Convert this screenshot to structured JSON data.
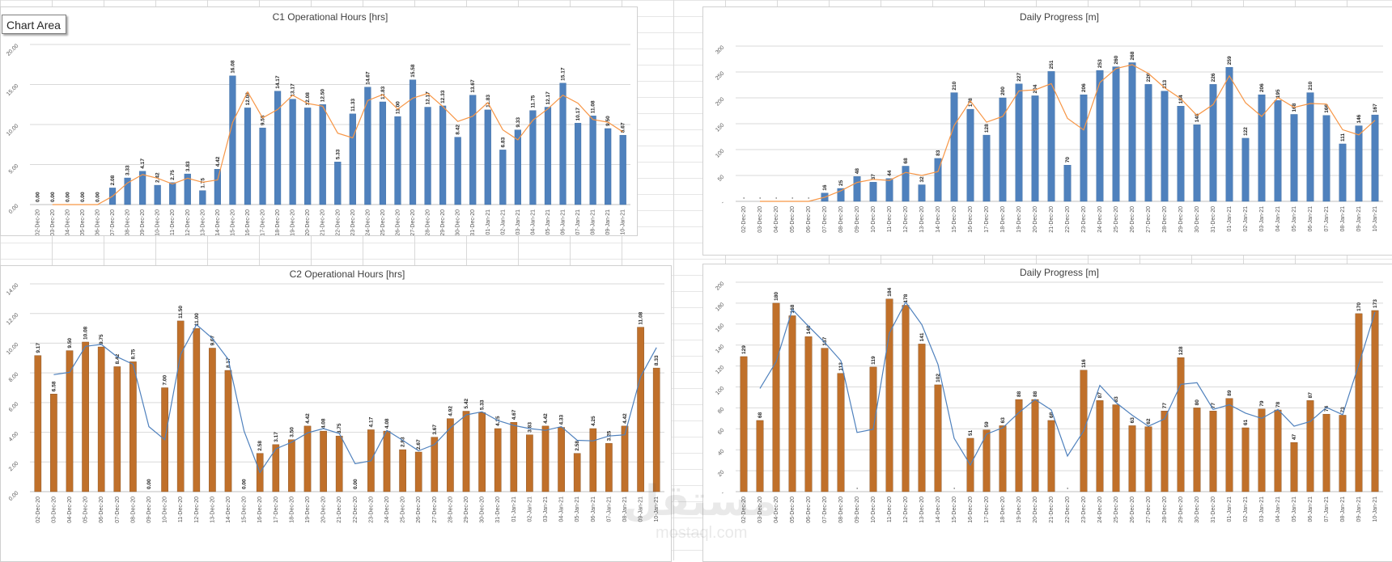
{
  "tooltip": "Chart Area",
  "watermark": {
    "main": "مستقل",
    "sub": "mostaql.com"
  },
  "chart_data": [
    {
      "type": "bar",
      "title": "C1 Operational Hours [hrs]",
      "categories": [
        "02-Dec-20",
        "03-Dec-20",
        "04-Dec-20",
        "05-Dec-20",
        "06-Dec-20",
        "07-Dec-20",
        "08-Dec-20",
        "09-Dec-20",
        "10-Dec-20",
        "11-Dec-20",
        "12-Dec-20",
        "13-Dec-20",
        "14-Dec-20",
        "15-Dec-20",
        "16-Dec-20",
        "17-Dec-20",
        "18-Dec-20",
        "19-Dec-20",
        "20-Dec-20",
        "21-Dec-20",
        "22-Dec-20",
        "23-Dec-20",
        "24-Dec-20",
        "25-Dec-20",
        "26-Dec-20",
        "27-Dec-20",
        "28-Dec-20",
        "29-Dec-20",
        "30-Dec-20",
        "31-Dec-20",
        "01-Jan-21",
        "02-Jan-21",
        "03-Jan-21",
        "04-Jan-21",
        "05-Jan-21",
        "06-Jan-21",
        "07-Jan-21",
        "08-Jan-21",
        "09-Jan-21",
        "10-Jan-21"
      ],
      "values": [
        0,
        0,
        0,
        0,
        0,
        2.08,
        3.33,
        4.17,
        2.42,
        2.75,
        3.83,
        1.75,
        4.42,
        16.08,
        12.08,
        9.58,
        14.17,
        13.17,
        12.08,
        12.5,
        5.33,
        11.33,
        14.67,
        12.83,
        11.0,
        15.58,
        12.17,
        12.33,
        8.42,
        13.67,
        11.83,
        6.83,
        9.33,
        11.75,
        12.17,
        15.17,
        10.17,
        11.08,
        9.5,
        8.67
      ],
      "labels": [
        "0.00",
        "0.00",
        "0.00",
        "0.00",
        "0.00",
        "2.08",
        "3.33",
        "4.17",
        "2.42",
        "2.75",
        "3.83",
        "1.75",
        "4.42",
        "16.08",
        "12.08",
        "9.58",
        "14.17",
        "13.17",
        "12.08",
        "12.50",
        "5.33",
        "11.33",
        "14.67",
        "12.83",
        "11.00",
        "15.58",
        "12.17",
        "12.33",
        "8.42",
        "13.67",
        "11.83",
        "6.83",
        "9.33",
        "11.75",
        "12.17",
        "15.17",
        "10.17",
        "11.08",
        "9.50",
        "8.67"
      ],
      "trend": [
        null,
        0,
        0,
        0,
        0,
        1.04,
        2.71,
        3.75,
        3.29,
        2.58,
        3.29,
        2.79,
        3.08,
        10.25,
        14.08,
        10.83,
        11.88,
        13.67,
        12.63,
        12.29,
        8.92,
        8.33,
        13.0,
        13.75,
        11.92,
        13.29,
        13.88,
        12.25,
        10.38,
        11.04,
        12.75,
        9.33,
        8.08,
        10.54,
        11.96,
        13.67,
        12.67,
        10.63,
        10.29,
        9.08
      ],
      "ylim": [
        0,
        20
      ],
      "yticks": [
        "0.00",
        "5.00",
        "10.00",
        "15.00",
        "20.00"
      ],
      "bar_color": "#4f81bd",
      "line_color": "#f79646"
    },
    {
      "type": "bar",
      "title": "Daily Progress [m]",
      "categories": [
        "02-Dec-20",
        "03-Dec-20",
        "04-Dec-20",
        "05-Dec-20",
        "06-Dec-20",
        "07-Dec-20",
        "08-Dec-20",
        "09-Dec-20",
        "10-Dec-20",
        "11-Dec-20",
        "12-Dec-20",
        "13-Dec-20",
        "14-Dec-20",
        "15-Dec-20",
        "16-Dec-20",
        "17-Dec-20",
        "18-Dec-20",
        "19-Dec-20",
        "20-Dec-20",
        "21-Dec-20",
        "22-Dec-20",
        "23-Dec-20",
        "24-Dec-20",
        "25-Dec-20",
        "26-Dec-20",
        "27-Dec-20",
        "28-Dec-20",
        "29-Dec-20",
        "30-Dec-20",
        "31-Dec-20",
        "01-Jan-21",
        "02-Jan-21",
        "03-Jan-21",
        "04-Jan-21",
        "05-Jan-21",
        "06-Jan-21",
        "07-Jan-21",
        "08-Jan-21",
        "09-Jan-21",
        "10-Jan-21"
      ],
      "values": [
        0,
        0,
        0,
        0,
        0,
        16,
        25,
        48,
        37,
        44,
        68,
        32,
        83,
        210,
        178,
        128,
        200,
        227,
        204,
        251,
        70,
        206,
        253,
        260,
        268,
        226,
        213,
        184,
        148,
        226,
        259,
        122,
        206,
        195,
        168,
        210,
        166,
        111,
        146,
        167
      ],
      "labels": [
        "-",
        "-",
        "-",
        "-",
        "-",
        "16",
        "25",
        "48",
        "37",
        "44",
        "68",
        "32",
        "83",
        "210",
        "178",
        "128",
        "200",
        "227",
        "204",
        "251",
        "70",
        "206",
        "253",
        "260",
        "268",
        "226",
        "213",
        "184",
        "148",
        "226",
        "259",
        "122",
        "206",
        "195",
        "168",
        "210",
        "166",
        "111",
        "146",
        "167"
      ],
      "trend": [
        null,
        0,
        0,
        0,
        0,
        8,
        20.5,
        36.5,
        42.5,
        40.5,
        56,
        50,
        57.5,
        146.5,
        194,
        153,
        164,
        213.5,
        215.5,
        227.5,
        160.5,
        138,
        229.5,
        256.5,
        264,
        247,
        219.5,
        198.5,
        166,
        187,
        242.5,
        190.5,
        164,
        200.5,
        181.5,
        189,
        188,
        138.5,
        128.5,
        156.5
      ],
      "ylim": [
        0,
        300
      ],
      "yticks": [
        "-",
        "50",
        "100",
        "150",
        "200",
        "250",
        "300"
      ],
      "bar_color": "#4f81bd",
      "line_color": "#f79646"
    },
    {
      "type": "bar",
      "title": "C2 Operational Hours [hrs]",
      "categories": [
        "02-Dec-20",
        "03-Dec-20",
        "04-Dec-20",
        "05-Dec-20",
        "06-Dec-20",
        "07-Dec-20",
        "08-Dec-20",
        "09-Dec-20",
        "10-Dec-20",
        "11-Dec-20",
        "12-Dec-20",
        "13-Dec-20",
        "14-Dec-20",
        "15-Dec-20",
        "16-Dec-20",
        "17-Dec-20",
        "18-Dec-20",
        "19-Dec-20",
        "20-Dec-20",
        "21-Dec-20",
        "22-Dec-20",
        "23-Dec-20",
        "24-Dec-20",
        "25-Dec-20",
        "26-Dec-20",
        "27-Dec-20",
        "28-Dec-20",
        "29-Dec-20",
        "30-Dec-20",
        "31-Dec-20",
        "01-Jan-21",
        "02-Jan-21",
        "03-Jan-21",
        "04-Jan-21",
        "05-Jan-21",
        "06-Jan-21",
        "07-Jan-21",
        "08-Jan-21",
        "09-Jan-21",
        "10-Jan-21"
      ],
      "values": [
        9.17,
        6.58,
        9.5,
        10.08,
        9.75,
        8.42,
        8.75,
        0,
        7.0,
        11.5,
        11.0,
        9.67,
        8.17,
        0,
        2.58,
        3.17,
        3.5,
        4.42,
        4.08,
        3.75,
        0,
        4.17,
        4.08,
        2.83,
        2.67,
        3.67,
        4.92,
        5.42,
        5.33,
        4.25,
        4.67,
        3.83,
        4.42,
        4.33,
        2.58,
        4.25,
        3.25,
        4.42,
        11.08,
        8.33
      ],
      "labels": [
        "9.17",
        "6.58",
        "9.50",
        "10.08",
        "9.75",
        "8.42",
        "8.75",
        "0.00",
        "7.00",
        "11.50",
        "11.00",
        "9.67",
        "8.17",
        "0.00",
        "2.58",
        "3.17",
        "3.50",
        "4.42",
        "4.08",
        "3.75",
        "0.00",
        "4.17",
        "4.08",
        "2.83",
        "2.67",
        "3.67",
        "4.92",
        "5.42",
        "5.33",
        "4.25",
        "4.67",
        "3.83",
        "4.42",
        "4.33",
        "2.58",
        "4.25",
        "3.25",
        "4.42",
        "11.08",
        "8.33"
      ],
      "trend": [
        null,
        7.88,
        8.04,
        9.79,
        9.92,
        9.08,
        8.58,
        4.38,
        3.5,
        9.25,
        11.25,
        10.33,
        8.92,
        4.08,
        1.29,
        2.88,
        3.33,
        3.96,
        4.25,
        3.92,
        1.88,
        2.08,
        4.13,
        3.46,
        2.75,
        3.17,
        4.29,
        5.17,
        5.38,
        4.79,
        4.46,
        4.25,
        4.13,
        4.38,
        3.46,
        3.42,
        3.75,
        3.83,
        7.75,
        9.71
      ],
      "ylim": [
        0,
        14
      ],
      "yticks": [
        "0.00",
        "2.00",
        "4.00",
        "6.00",
        "8.00",
        "10.00",
        "12.00",
        "14.00"
      ],
      "bar_color": "#c0702a",
      "line_color": "#4f81bd"
    },
    {
      "type": "bar",
      "title": "Daily Progress [m]",
      "categories": [
        "02-Dec-20",
        "03-Dec-20",
        "04-Dec-20",
        "05-Dec-20",
        "06-Dec-20",
        "07-Dec-20",
        "08-Dec-20",
        "09-Dec-20",
        "10-Dec-20",
        "11-Dec-20",
        "12-Dec-20",
        "13-Dec-20",
        "14-Dec-20",
        "15-Dec-20",
        "16-Dec-20",
        "17-Dec-20",
        "18-Dec-20",
        "19-Dec-20",
        "20-Dec-20",
        "21-Dec-20",
        "22-Dec-20",
        "23-Dec-20",
        "24-Dec-20",
        "25-Dec-20",
        "26-Dec-20",
        "27-Dec-20",
        "28-Dec-20",
        "29-Dec-20",
        "30-Dec-20",
        "31-Dec-20",
        "01-Jan-21",
        "02-Jan-21",
        "03-Jan-21",
        "04-Jan-21",
        "05-Jan-21",
        "06-Jan-21",
        "07-Jan-21",
        "08-Jan-21",
        "09-Jan-21",
        "10-Jan-21"
      ],
      "values": [
        129,
        68,
        180,
        168,
        148,
        137,
        113,
        0,
        119,
        184,
        178,
        141,
        102,
        0,
        51,
        59,
        63,
        88,
        88,
        68,
        0,
        116,
        87,
        83,
        63,
        62,
        77,
        128,
        80,
        77,
        89,
        61,
        79,
        78,
        47,
        87,
        74,
        73,
        170,
        173
      ],
      "labels": [
        "129",
        "68",
        "180",
        "168",
        "148",
        "137",
        "113",
        "-",
        "119",
        "184",
        "178",
        "141",
        "102",
        "-",
        "51",
        "59",
        "63",
        "88",
        "88",
        "68",
        "-",
        "116",
        "87",
        "83",
        "63",
        "62",
        "77",
        "128",
        "80",
        "77",
        "89",
        "61",
        "79",
        "78",
        "47",
        "87",
        "74",
        "73",
        "170",
        "173"
      ],
      "trend": [
        null,
        98.5,
        124,
        174,
        158,
        142.5,
        125,
        56.5,
        59.5,
        151.5,
        181,
        159.5,
        121.5,
        51,
        25.5,
        55,
        61,
        75.5,
        88,
        78,
        34,
        58,
        101.5,
        85,
        73,
        62.5,
        69.5,
        102.5,
        104,
        78.5,
        83,
        75,
        70,
        78.5,
        62.5,
        67,
        80.5,
        73.5,
        121.5,
        171.5
      ],
      "ylim": [
        0,
        200
      ],
      "yticks": [
        "-",
        "20",
        "40",
        "60",
        "80",
        "100",
        "120",
        "140",
        "160",
        "180",
        "200"
      ],
      "bar_color": "#c0702a",
      "line_color": "#4f81bd"
    }
  ]
}
